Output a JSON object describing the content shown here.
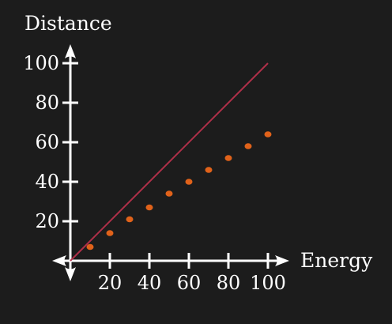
{
  "chart_data": {
    "type": "scatter",
    "xlabel": "Energy",
    "ylabel": "Distance",
    "xlim": [
      0,
      100
    ],
    "ylim": [
      0,
      100
    ],
    "x_ticks": [
      20,
      40,
      60,
      80,
      100
    ],
    "y_ticks": [
      20,
      40,
      60,
      80,
      100
    ],
    "grid": false,
    "series": [
      {
        "type": "scatter",
        "x": [
          10,
          20,
          30,
          40,
          50,
          60,
          70,
          80,
          90,
          100
        ],
        "y": [
          7,
          14,
          21,
          27,
          34,
          40,
          46,
          52,
          58,
          64
        ]
      },
      {
        "type": "line",
        "x": [
          0,
          100
        ],
        "y": [
          0,
          100
        ]
      }
    ]
  },
  "colors": {
    "background": "#1c1c1c",
    "axes": "#ffffff",
    "points": "#e0621a",
    "reference_line": "#b03049"
  }
}
